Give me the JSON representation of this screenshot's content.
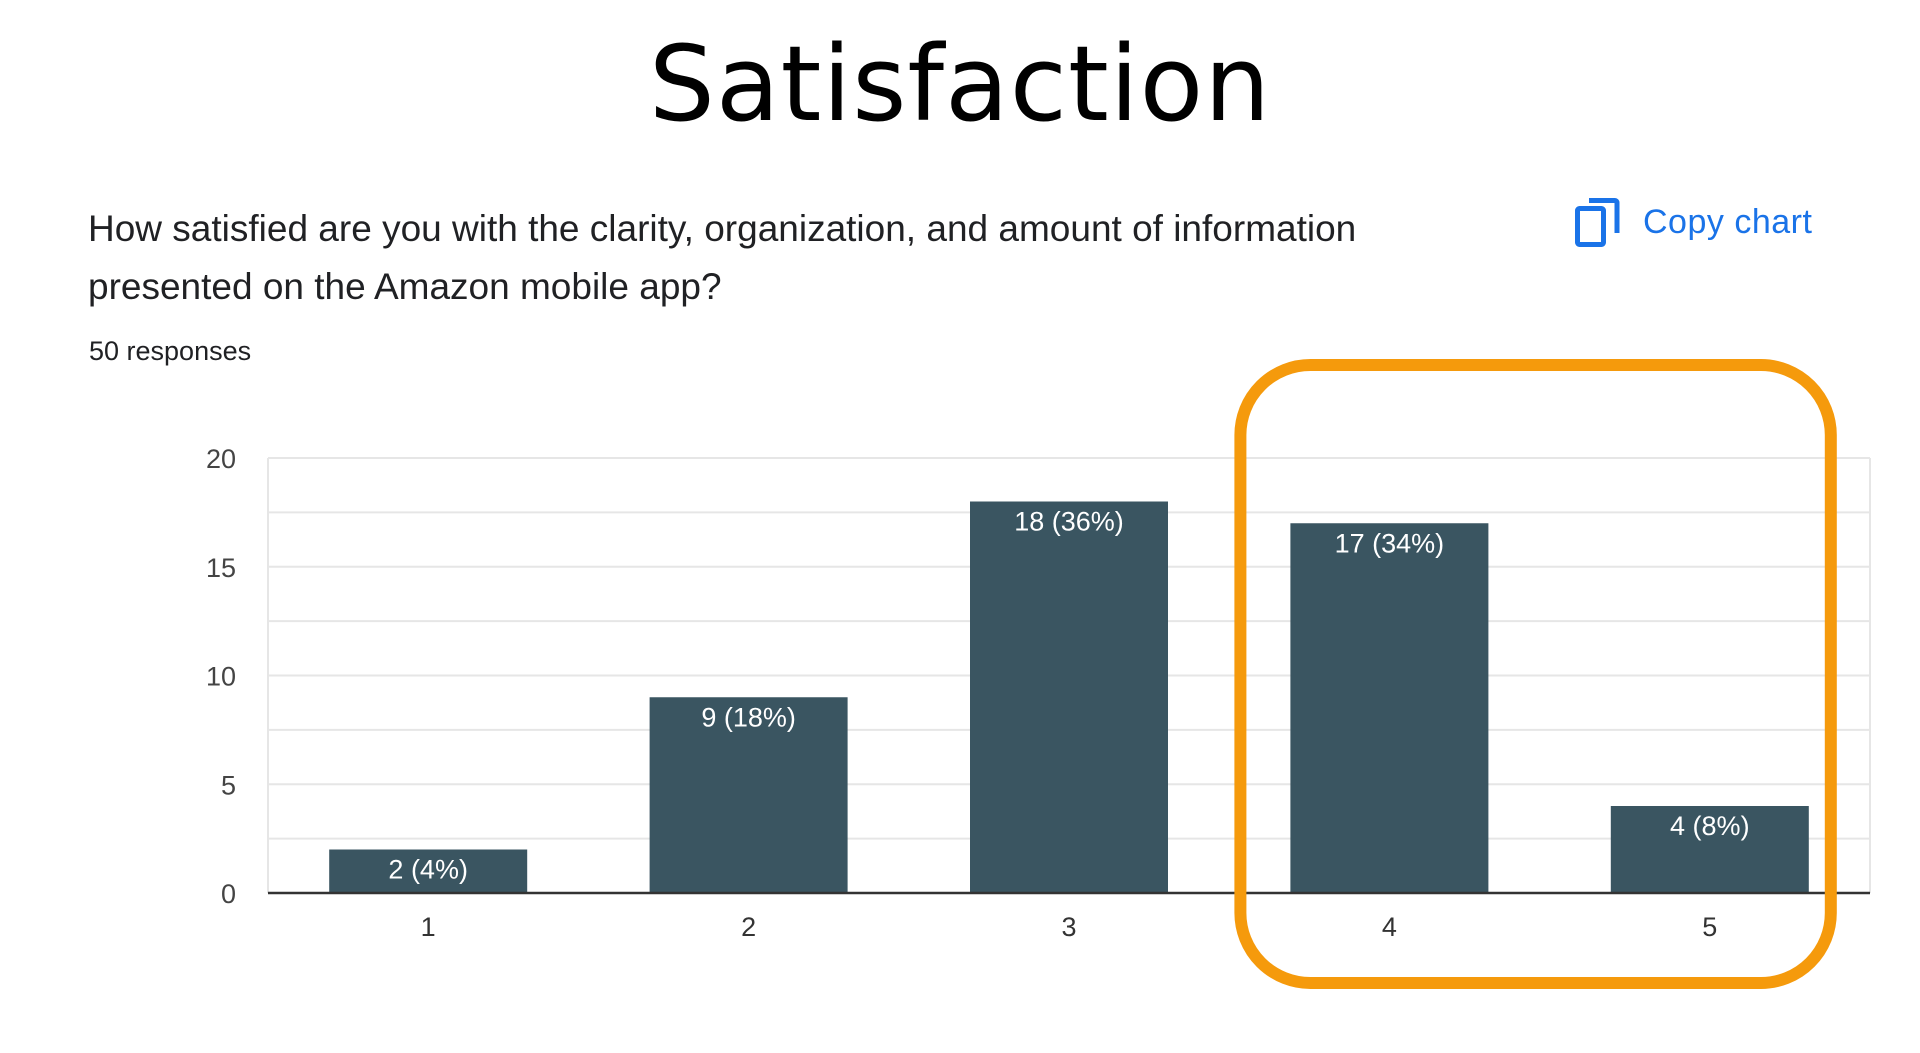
{
  "page": {
    "title": "Satisfaction"
  },
  "question": {
    "text": "How satisfied are you with the clarity, organization, and amount of information presented on the Amazon mobile app?",
    "responses": "50 responses"
  },
  "copy_chart": {
    "label": "Copy chart",
    "icon": "copy-icon"
  },
  "colors": {
    "bar": "#3a5561",
    "highlight": "#f59a0c",
    "link": "#1a73e8",
    "grid": "#e6e6e6",
    "axis": "#333333",
    "bar_label": "#ffffff"
  },
  "chart_data": {
    "type": "bar",
    "categories": [
      "1",
      "2",
      "3",
      "4",
      "5"
    ],
    "values": [
      2,
      9,
      18,
      17,
      4
    ],
    "data_labels": [
      "2 (4%)",
      "9 (18%)",
      "18 (36%)",
      "17 (34%)",
      "4 (8%)"
    ],
    "ylim": [
      0,
      20
    ],
    "yticks": [
      0,
      5,
      10,
      15,
      20
    ],
    "grid": true,
    "legend": false,
    "highlighted_categories": [
      "4",
      "5"
    ]
  }
}
